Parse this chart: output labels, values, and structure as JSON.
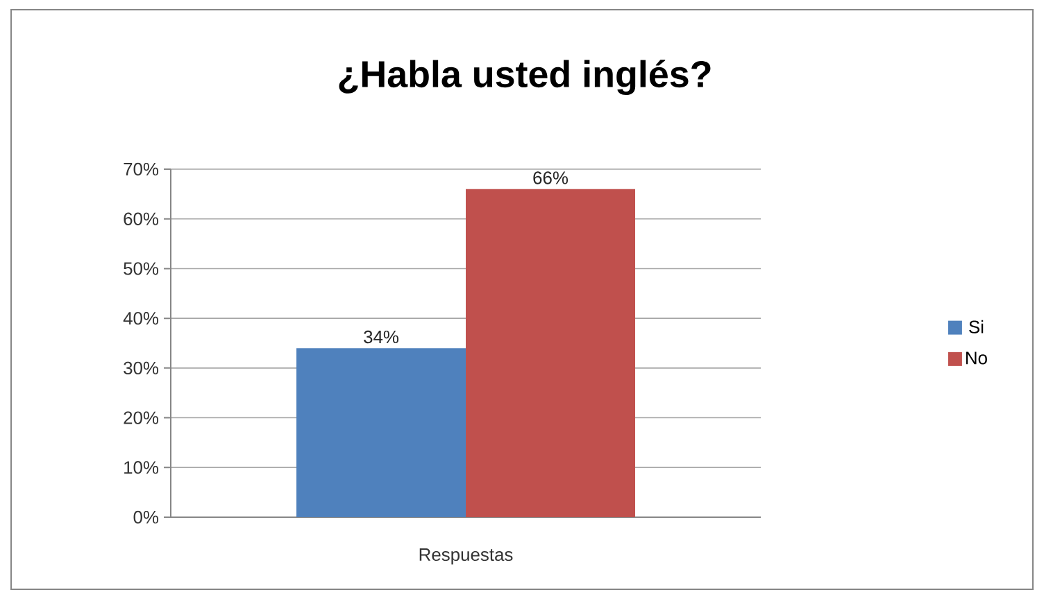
{
  "chart_data": {
    "type": "bar",
    "title": "¿Habla usted inglés?",
    "categories": [
      "Respuestas"
    ],
    "series": [
      {
        "name": "Si",
        "color": "#4f81bd",
        "values": [
          34
        ],
        "value_labels": [
          "34%"
        ]
      },
      {
        "name": "No",
        "color": "#c0504d",
        "values": [
          66
        ],
        "value_labels": [
          "66%"
        ]
      }
    ],
    "ylim": [
      0,
      70
    ],
    "yticks": [
      {
        "value": 0,
        "label": "0%"
      },
      {
        "value": 10,
        "label": "10%"
      },
      {
        "value": 20,
        "label": "20%"
      },
      {
        "value": 30,
        "label": "30%"
      },
      {
        "value": 40,
        "label": "40%"
      },
      {
        "value": 50,
        "label": "50%"
      },
      {
        "value": 60,
        "label": "60%"
      },
      {
        "value": 70,
        "label": "70%"
      }
    ],
    "grid": "y",
    "legend": "right"
  }
}
